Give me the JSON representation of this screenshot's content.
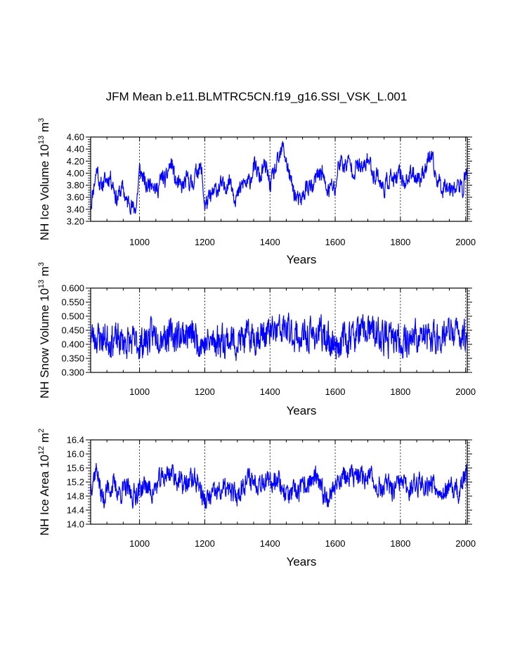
{
  "title": "JFM Mean b.e11.BLMTRC5CN.f19_g16.SSI_VSK_L.001",
  "colors": {
    "line": "#0000ff",
    "axis": "#000000",
    "grid": "#000000"
  },
  "chart_data": [
    {
      "type": "line",
      "name": "nh-ice-volume",
      "ylabel_main": "NH Ice Volume 10",
      "ylabel_exp": "13",
      "ylabel_unit": " m",
      "ylabel_unit_exp": "3",
      "xlabel": "Years",
      "xlim": [
        850,
        2005
      ],
      "ylim": [
        3.2,
        4.6
      ],
      "xticks": [
        1000,
        1200,
        1400,
        1600,
        1800,
        2000
      ],
      "xtick_labels": [
        "1000",
        "1200",
        "1400",
        "1600",
        "1800",
        "2000"
      ],
      "yticks": [
        3.2,
        3.4,
        3.6,
        3.8,
        4.0,
        4.2,
        4.4,
        4.6
      ],
      "ytick_labels": [
        "3.20",
        "3.40",
        "3.60",
        "3.80",
        "4.00",
        "4.20",
        "4.40",
        "4.60"
      ],
      "grid_x": [
        1000,
        1200,
        1400,
        1600,
        1800,
        2000
      ],
      "anchors": [
        [
          850,
          3.45
        ],
        [
          860,
          3.8
        ],
        [
          870,
          4.1
        ],
        [
          880,
          3.75
        ],
        [
          890,
          3.85
        ],
        [
          900,
          3.9
        ],
        [
          910,
          3.95
        ],
        [
          920,
          3.8
        ],
        [
          930,
          3.55
        ],
        [
          940,
          3.7
        ],
        [
          950,
          3.75
        ],
        [
          960,
          3.5
        ],
        [
          970,
          3.55
        ],
        [
          980,
          3.4
        ],
        [
          990,
          3.45
        ],
        [
          1000,
          4.05
        ],
        [
          1010,
          3.95
        ],
        [
          1020,
          3.75
        ],
        [
          1030,
          3.85
        ],
        [
          1040,
          3.9
        ],
        [
          1050,
          3.7
        ],
        [
          1060,
          3.8
        ],
        [
          1070,
          3.95
        ],
        [
          1080,
          3.85
        ],
        [
          1090,
          4.1
        ],
        [
          1100,
          4.15
        ],
        [
          1110,
          3.85
        ],
        [
          1120,
          3.8
        ],
        [
          1130,
          3.75
        ],
        [
          1140,
          3.85
        ],
        [
          1150,
          3.9
        ],
        [
          1160,
          3.8
        ],
        [
          1170,
          3.95
        ],
        [
          1180,
          4.1
        ],
        [
          1190,
          4.05
        ],
        [
          1200,
          3.45
        ],
        [
          1210,
          3.55
        ],
        [
          1220,
          3.6
        ],
        [
          1230,
          3.7
        ],
        [
          1240,
          3.75
        ],
        [
          1250,
          3.8
        ],
        [
          1260,
          3.75
        ],
        [
          1270,
          3.85
        ],
        [
          1280,
          3.9
        ],
        [
          1290,
          3.65
        ],
        [
          1300,
          3.6
        ],
        [
          1310,
          3.75
        ],
        [
          1320,
          3.85
        ],
        [
          1330,
          3.8
        ],
        [
          1340,
          3.9
        ],
        [
          1350,
          4.1
        ],
        [
          1360,
          4.05
        ],
        [
          1370,
          3.9
        ],
        [
          1380,
          4.1
        ],
        [
          1390,
          4.05
        ],
        [
          1400,
          3.8
        ],
        [
          1410,
          3.95
        ],
        [
          1420,
          4.1
        ],
        [
          1430,
          4.25
        ],
        [
          1440,
          4.45
        ],
        [
          1450,
          4.2
        ],
        [
          1460,
          3.95
        ],
        [
          1470,
          3.75
        ],
        [
          1480,
          3.6
        ],
        [
          1490,
          3.5
        ],
        [
          1500,
          3.6
        ],
        [
          1510,
          3.75
        ],
        [
          1520,
          3.8
        ],
        [
          1530,
          3.7
        ],
        [
          1540,
          3.9
        ],
        [
          1550,
          4.0
        ],
        [
          1560,
          4.05
        ],
        [
          1570,
          3.75
        ],
        [
          1580,
          3.7
        ],
        [
          1590,
          3.8
        ],
        [
          1600,
          3.7
        ],
        [
          1610,
          4.15
        ],
        [
          1620,
          4.2
        ],
        [
          1630,
          4.1
        ],
        [
          1640,
          4.2
        ],
        [
          1650,
          4.1
        ],
        [
          1660,
          4.05
        ],
        [
          1670,
          4.15
        ],
        [
          1680,
          4.05
        ],
        [
          1690,
          4.1
        ],
        [
          1700,
          4.25
        ],
        [
          1710,
          4.1
        ],
        [
          1720,
          3.95
        ],
        [
          1730,
          4.0
        ],
        [
          1740,
          3.8
        ],
        [
          1750,
          3.75
        ],
        [
          1760,
          3.85
        ],
        [
          1770,
          3.95
        ],
        [
          1780,
          3.85
        ],
        [
          1790,
          3.9
        ],
        [
          1800,
          4.0
        ],
        [
          1810,
          3.85
        ],
        [
          1820,
          3.9
        ],
        [
          1830,
          3.95
        ],
        [
          1840,
          4.0
        ],
        [
          1850,
          3.95
        ],
        [
          1860,
          3.9
        ],
        [
          1870,
          4.05
        ],
        [
          1880,
          4.1
        ],
        [
          1890,
          4.3
        ],
        [
          1900,
          4.15
        ],
        [
          1910,
          3.9
        ],
        [
          1920,
          3.85
        ],
        [
          1930,
          3.75
        ],
        [
          1940,
          3.85
        ],
        [
          1950,
          3.75
        ],
        [
          1960,
          3.8
        ],
        [
          1970,
          3.75
        ],
        [
          1980,
          3.8
        ],
        [
          1990,
          3.7
        ],
        [
          2000,
          4.0
        ],
        [
          2005,
          3.95
        ]
      ],
      "noise_amp": 0.14,
      "seed": 11
    },
    {
      "type": "line",
      "name": "nh-snow-volume",
      "ylabel_main": "NH Snow Volume 10",
      "ylabel_exp": "13",
      "ylabel_unit": " m",
      "ylabel_unit_exp": "3",
      "xlabel": "Years",
      "xlim": [
        850,
        2005
      ],
      "ylim": [
        0.3,
        0.6
      ],
      "xticks": [
        1000,
        1200,
        1400,
        1600,
        1800,
        2000
      ],
      "xtick_labels": [
        "1000",
        "1200",
        "1400",
        "1600",
        "1800",
        "2000"
      ],
      "yticks": [
        0.3,
        0.35,
        0.4,
        0.45,
        0.5,
        0.55,
        0.6
      ],
      "ytick_labels": [
        "0.300",
        "0.350",
        "0.400",
        "0.450",
        "0.500",
        "0.550",
        "0.600"
      ],
      "grid_x": [
        1000,
        1200,
        1400,
        1600,
        1800,
        2000
      ],
      "anchors": [
        [
          850,
          0.43
        ],
        [
          900,
          0.42
        ],
        [
          950,
          0.41
        ],
        [
          1000,
          0.4
        ],
        [
          1050,
          0.44
        ],
        [
          1100,
          0.43
        ],
        [
          1150,
          0.44
        ],
        [
          1200,
          0.4
        ],
        [
          1250,
          0.42
        ],
        [
          1300,
          0.41
        ],
        [
          1350,
          0.43
        ],
        [
          1400,
          0.44
        ],
        [
          1450,
          0.45
        ],
        [
          1500,
          0.42
        ],
        [
          1550,
          0.44
        ],
        [
          1600,
          0.4
        ],
        [
          1650,
          0.43
        ],
        [
          1700,
          0.45
        ],
        [
          1750,
          0.42
        ],
        [
          1800,
          0.41
        ],
        [
          1850,
          0.43
        ],
        [
          1900,
          0.42
        ],
        [
          1950,
          0.44
        ],
        [
          2005,
          0.43
        ]
      ],
      "noise_amp": 0.055,
      "seed": 23
    },
    {
      "type": "line",
      "name": "nh-ice-area",
      "ylabel_main": "NH Ice Area 10",
      "ylabel_exp": "12",
      "ylabel_unit": " m",
      "ylabel_unit_exp": "2",
      "xlabel": "Years",
      "xlim": [
        850,
        2005
      ],
      "ylim": [
        14.0,
        16.4
      ],
      "xticks": [
        1000,
        1200,
        1400,
        1600,
        1800,
        2000
      ],
      "xtick_labels": [
        "1000",
        "1200",
        "1400",
        "1600",
        "1800",
        "2000"
      ],
      "yticks": [
        14.0,
        14.4,
        14.8,
        15.2,
        15.6,
        16.0,
        16.4
      ],
      "ytick_labels": [
        "14.0",
        "14.4",
        "14.8",
        "15.2",
        "15.6",
        "16.0",
        "16.4"
      ],
      "grid_x": [
        1000,
        1200,
        1400,
        1600,
        1800,
        2000
      ],
      "anchors": [
        [
          850,
          15.1
        ],
        [
          860,
          15.4
        ],
        [
          870,
          15.6
        ],
        [
          880,
          14.9
        ],
        [
          890,
          14.7
        ],
        [
          900,
          15.0
        ],
        [
          920,
          15.1
        ],
        [
          940,
          14.9
        ],
        [
          960,
          15.0
        ],
        [
          980,
          14.8
        ],
        [
          1000,
          15.0
        ],
        [
          1020,
          15.1
        ],
        [
          1040,
          14.9
        ],
        [
          1060,
          15.2
        ],
        [
          1080,
          15.4
        ],
        [
          1100,
          15.5
        ],
        [
          1120,
          15.2
        ],
        [
          1140,
          15.1
        ],
        [
          1160,
          15.3
        ],
        [
          1180,
          15.2
        ],
        [
          1200,
          14.6
        ],
        [
          1220,
          14.8
        ],
        [
          1240,
          14.9
        ],
        [
          1260,
          15.0
        ],
        [
          1280,
          14.9
        ],
        [
          1300,
          14.8
        ],
        [
          1320,
          15.2
        ],
        [
          1340,
          15.3
        ],
        [
          1360,
          15.2
        ],
        [
          1380,
          15.3
        ],
        [
          1400,
          15.1
        ],
        [
          1420,
          15.4
        ],
        [
          1440,
          15.0
        ],
        [
          1460,
          14.8
        ],
        [
          1480,
          14.9
        ],
        [
          1500,
          15.0
        ],
        [
          1520,
          15.2
        ],
        [
          1540,
          15.3
        ],
        [
          1560,
          14.9
        ],
        [
          1580,
          14.8
        ],
        [
          1600,
          15.1
        ],
        [
          1620,
          15.4
        ],
        [
          1640,
          15.3
        ],
        [
          1660,
          15.4
        ],
        [
          1680,
          15.3
        ],
        [
          1700,
          15.4
        ],
        [
          1720,
          15.2
        ],
        [
          1740,
          15.0
        ],
        [
          1760,
          15.1
        ],
        [
          1780,
          14.9
        ],
        [
          1800,
          15.2
        ],
        [
          1820,
          15.0
        ],
        [
          1840,
          15.1
        ],
        [
          1860,
          15.2
        ],
        [
          1880,
          15.1
        ],
        [
          1900,
          15.2
        ],
        [
          1920,
          15.0
        ],
        [
          1940,
          14.9
        ],
        [
          1960,
          15.0
        ],
        [
          1980,
          14.9
        ],
        [
          2000,
          15.4
        ],
        [
          2005,
          15.3
        ]
      ],
      "noise_amp": 0.3,
      "seed": 37
    }
  ]
}
